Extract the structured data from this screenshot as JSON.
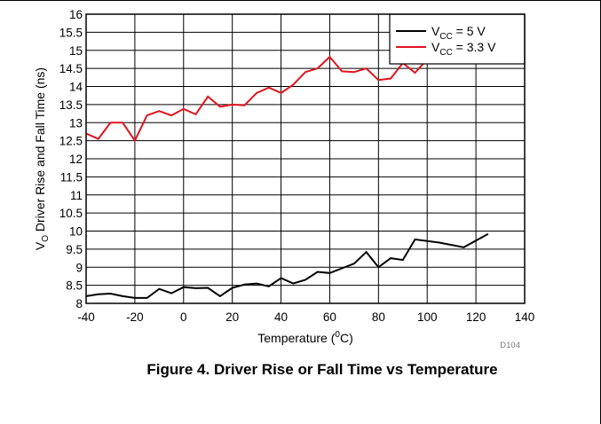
{
  "chart_data": {
    "type": "line",
    "x": [
      -40,
      -35,
      -30,
      -25,
      -20,
      -15,
      -10,
      -5,
      0,
      5,
      10,
      15,
      20,
      25,
      30,
      35,
      40,
      45,
      50,
      55,
      60,
      65,
      70,
      75,
      80,
      85,
      90,
      95,
      100,
      105,
      110,
      115,
      120,
      125
    ],
    "series": [
      {
        "name": "V_CC = 5 V",
        "name_main": "V",
        "name_sub": "CC",
        "name_rest": " = 5 V",
        "color": "#000000",
        "points": [
          [
            -40,
            8.2
          ],
          [
            -35,
            8.25
          ],
          [
            -30,
            8.27
          ],
          [
            -25,
            8.2
          ],
          [
            -20,
            8.15
          ],
          [
            -15,
            8.15
          ],
          [
            -10,
            8.4
          ],
          [
            -5,
            8.28
          ],
          [
            0,
            8.45
          ],
          [
            5,
            8.42
          ],
          [
            10,
            8.43
          ],
          [
            15,
            8.2
          ],
          [
            20,
            8.43
          ],
          [
            25,
            8.52
          ],
          [
            30,
            8.55
          ],
          [
            35,
            8.47
          ],
          [
            40,
            8.7
          ],
          [
            45,
            8.55
          ],
          [
            50,
            8.65
          ],
          [
            55,
            8.87
          ],
          [
            60,
            8.84
          ],
          [
            65,
            8.97
          ],
          [
            70,
            9.1
          ],
          [
            75,
            9.42
          ],
          [
            80,
            9.0
          ],
          [
            85,
            9.25
          ],
          [
            90,
            9.2
          ],
          [
            95,
            9.77
          ],
          [
            105,
            9.68
          ],
          [
            115,
            9.55
          ],
          [
            125,
            9.92
          ]
        ]
      },
      {
        "name": "V_CC = 3.3 V",
        "name_main": "V",
        "name_sub": "CC",
        "name_rest": " = 3.3 V",
        "color": "#e0141e",
        "points": [
          [
            -40,
            12.7
          ],
          [
            -35,
            12.55
          ],
          [
            -30,
            13.0
          ],
          [
            -25,
            13.0
          ],
          [
            -20,
            12.5
          ],
          [
            -15,
            13.2
          ],
          [
            -10,
            13.32
          ],
          [
            -5,
            13.2
          ],
          [
            0,
            13.38
          ],
          [
            5,
            13.23
          ],
          [
            10,
            13.72
          ],
          [
            15,
            13.44
          ],
          [
            20,
            13.5
          ],
          [
            25,
            13.48
          ],
          [
            30,
            13.82
          ],
          [
            35,
            13.97
          ],
          [
            40,
            13.82
          ],
          [
            45,
            14.05
          ],
          [
            50,
            14.4
          ],
          [
            55,
            14.5
          ],
          [
            60,
            14.82
          ],
          [
            65,
            14.42
          ],
          [
            70,
            14.4
          ],
          [
            75,
            14.5
          ],
          [
            80,
            14.18
          ],
          [
            85,
            14.22
          ],
          [
            90,
            14.65
          ],
          [
            95,
            14.38
          ],
          [
            100,
            14.75
          ]
        ]
      }
    ],
    "xlim": [
      -40,
      140
    ],
    "ylim": [
      8,
      16
    ],
    "xticks": [
      -40,
      -20,
      0,
      20,
      40,
      60,
      80,
      100,
      120,
      140
    ],
    "xtick_labels": [
      "-40",
      "-20",
      "0",
      "20",
      "40",
      "60",
      "80",
      "100",
      "120",
      "140"
    ],
    "yticks": [
      8,
      8.5,
      9,
      9.5,
      10,
      10.5,
      11,
      11.5,
      12,
      12.5,
      13,
      13.5,
      14,
      14.5,
      15,
      15.5,
      16
    ],
    "ytick_labels": [
      "8",
      "8.5",
      "9",
      "9.5",
      "10",
      "10.5",
      "11",
      "11.5",
      "12",
      "12.5",
      "13",
      "13.5",
      "14",
      "14.5",
      "15",
      "15.5",
      "16"
    ],
    "xlabel": "Temperature (0C)",
    "xlabel_main": "Temperature (",
    "xlabel_sup": "0",
    "xlabel_rest": "C)",
    "ylabel": "VO Driver Rise and Fall Time (ns)",
    "ylabel_main": "V",
    "ylabel_sub": "O",
    "ylabel_rest": " Driver Rise and Fall Time (ns)",
    "grid": true,
    "legend_position": "top-right",
    "figure_code": "D104"
  },
  "caption": "Figure 4. Driver Rise or Fall Time vs Temperature"
}
